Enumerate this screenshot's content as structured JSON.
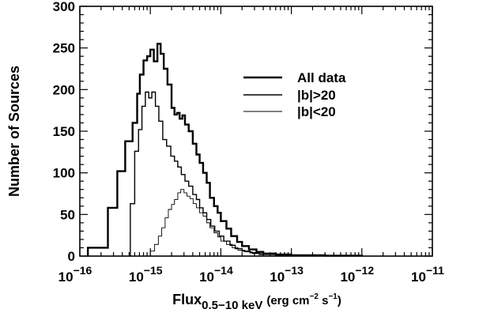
{
  "chart_data": {
    "type": "line",
    "step": true,
    "x_scale": "log",
    "xlim": [
      1e-16,
      1e-11
    ],
    "ylim": [
      0,
      300
    ],
    "xlabel": {
      "main": "Flux",
      "sub": "0.5−10 keV",
      "units_pre": "(erg cm",
      "units_exp1": "−2",
      "units_mid": " s",
      "units_exp2": "−1",
      "units_post": ")"
    },
    "ylabel": "Number of Sources",
    "x_ticks": [
      {
        "base": "10",
        "exp": "−16",
        "value": 1e-16
      },
      {
        "base": "10",
        "exp": "−15",
        "value": 1e-15
      },
      {
        "base": "10",
        "exp": "−14",
        "value": 1e-14
      },
      {
        "base": "10",
        "exp": "−13",
        "value": 1e-13
      },
      {
        "base": "10",
        "exp": "−12",
        "value": 1e-12
      },
      {
        "base": "10",
        "exp": "−11",
        "value": 1e-11
      }
    ],
    "y_ticks": [
      "0",
      "50",
      "100",
      "150",
      "200",
      "250",
      "300"
    ],
    "legend_position": "top-right",
    "series": [
      {
        "name": "All data",
        "stroke_width": 2.4,
        "points": [
          [
            1.3e-16,
            0
          ],
          [
            1.3e-16,
            10
          ],
          [
            2.5e-16,
            10
          ],
          [
            2.5e-16,
            58
          ],
          [
            3.4e-16,
            58
          ],
          [
            3.4e-16,
            102
          ],
          [
            4.4e-16,
            102
          ],
          [
            4.4e-16,
            138
          ],
          [
            5.6e-16,
            138
          ],
          [
            5.6e-16,
            160
          ],
          [
            6.5e-16,
            160
          ],
          [
            6.5e-16,
            195
          ],
          [
            7.1e-16,
            195
          ],
          [
            7.1e-16,
            218
          ],
          [
            8e-16,
            218
          ],
          [
            8e-16,
            235
          ],
          [
            9e-16,
            235
          ],
          [
            9e-16,
            240
          ],
          [
            1e-15,
            240
          ],
          [
            1e-15,
            248
          ],
          [
            1.12e-15,
            248
          ],
          [
            1.12e-15,
            234
          ],
          [
            1.26e-15,
            234
          ],
          [
            1.26e-15,
            255
          ],
          [
            1.4e-15,
            255
          ],
          [
            1.4e-15,
            243
          ],
          [
            1.55e-15,
            243
          ],
          [
            1.55e-15,
            225
          ],
          [
            1.75e-15,
            225
          ],
          [
            1.75e-15,
            206
          ],
          [
            2e-15,
            206
          ],
          [
            2e-15,
            178
          ],
          [
            2.2e-15,
            178
          ],
          [
            2.2e-15,
            170
          ],
          [
            2.4e-15,
            170
          ],
          [
            2.4e-15,
            172
          ],
          [
            2.6e-15,
            172
          ],
          [
            2.6e-15,
            165
          ],
          [
            2.85e-15,
            165
          ],
          [
            2.85e-15,
            169
          ],
          [
            3.1e-15,
            169
          ],
          [
            3.1e-15,
            158
          ],
          [
            3.5e-15,
            158
          ],
          [
            3.5e-15,
            150
          ],
          [
            4e-15,
            150
          ],
          [
            4e-15,
            135
          ],
          [
            4.5e-15,
            135
          ],
          [
            4.5e-15,
            122
          ],
          [
            5e-15,
            122
          ],
          [
            5e-15,
            112
          ],
          [
            5.6e-15,
            112
          ],
          [
            5.6e-15,
            100
          ],
          [
            6.3e-15,
            100
          ],
          [
            6.3e-15,
            88
          ],
          [
            7e-15,
            88
          ],
          [
            7e-15,
            70
          ],
          [
            8e-15,
            70
          ],
          [
            8e-15,
            60
          ],
          [
            9e-15,
            60
          ],
          [
            9e-15,
            52
          ],
          [
            1e-14,
            52
          ],
          [
            1e-14,
            42
          ],
          [
            1.2e-14,
            42
          ],
          [
            1.2e-14,
            33
          ],
          [
            1.4e-14,
            33
          ],
          [
            1.4e-14,
            24
          ],
          [
            1.7e-14,
            24
          ],
          [
            1.7e-14,
            17
          ],
          [
            2e-14,
            17
          ],
          [
            2e-14,
            12
          ],
          [
            2.5e-14,
            12
          ],
          [
            2.5e-14,
            8
          ],
          [
            3.2e-14,
            8
          ],
          [
            3.2e-14,
            5
          ],
          [
            4e-14,
            5
          ],
          [
            4e-14,
            3
          ],
          [
            6e-14,
            3
          ],
          [
            6e-14,
            2
          ],
          [
            1e-13,
            2
          ],
          [
            1e-13,
            1
          ],
          [
            3e-13,
            1
          ],
          [
            3e-13,
            0.5
          ],
          [
            1e-12,
            0.5
          ],
          [
            1e-12,
            0
          ]
        ]
      },
      {
        "name": "|b|>20",
        "stroke_width": 1.4,
        "points": [
          [
            5.2e-16,
            0
          ],
          [
            5.2e-16,
            63
          ],
          [
            6e-16,
            63
          ],
          [
            6e-16,
            126
          ],
          [
            6.8e-16,
            126
          ],
          [
            6.8e-16,
            152
          ],
          [
            7.6e-16,
            152
          ],
          [
            7.6e-16,
            180
          ],
          [
            8.5e-16,
            180
          ],
          [
            8.5e-16,
            197
          ],
          [
            9.5e-16,
            197
          ],
          [
            9.5e-16,
            190
          ],
          [
            1.05e-15,
            190
          ],
          [
            1.05e-15,
            197
          ],
          [
            1.18e-15,
            197
          ],
          [
            1.18e-15,
            180
          ],
          [
            1.32e-15,
            180
          ],
          [
            1.32e-15,
            162
          ],
          [
            1.5e-15,
            162
          ],
          [
            1.5e-15,
            140
          ],
          [
            1.7e-15,
            140
          ],
          [
            1.7e-15,
            132
          ],
          [
            1.95e-15,
            132
          ],
          [
            1.95e-15,
            120
          ],
          [
            2.2e-15,
            120
          ],
          [
            2.2e-15,
            114
          ],
          [
            2.45e-15,
            114
          ],
          [
            2.45e-15,
            107
          ],
          [
            2.75e-15,
            107
          ],
          [
            2.75e-15,
            98
          ],
          [
            3.1e-15,
            98
          ],
          [
            3.1e-15,
            90
          ],
          [
            3.5e-15,
            90
          ],
          [
            3.5e-15,
            84
          ],
          [
            4e-15,
            84
          ],
          [
            4e-15,
            74
          ],
          [
            4.5e-15,
            74
          ],
          [
            4.5e-15,
            68
          ],
          [
            5e-15,
            68
          ],
          [
            5e-15,
            58
          ],
          [
            5.6e-15,
            58
          ],
          [
            5.6e-15,
            52
          ],
          [
            6.3e-15,
            52
          ],
          [
            6.3e-15,
            44
          ],
          [
            7.2e-15,
            44
          ],
          [
            7.2e-15,
            36
          ],
          [
            8.2e-15,
            36
          ],
          [
            8.2e-15,
            30
          ],
          [
            9.5e-15,
            30
          ],
          [
            9.5e-15,
            24
          ],
          [
            1.1e-14,
            24
          ],
          [
            1.1e-14,
            18
          ],
          [
            1.35e-14,
            18
          ],
          [
            1.35e-14,
            13
          ],
          [
            1.6e-14,
            13
          ],
          [
            1.6e-14,
            9
          ],
          [
            2e-14,
            9
          ],
          [
            2e-14,
            6
          ],
          [
            2.6e-14,
            6
          ],
          [
            2.6e-14,
            4
          ],
          [
            3.5e-14,
            4
          ],
          [
            3.5e-14,
            2
          ],
          [
            6e-14,
            2
          ],
          [
            6e-14,
            1
          ],
          [
            1.5e-13,
            1
          ],
          [
            1.5e-13,
            0
          ]
        ]
      },
      {
        "name": "|b|<20",
        "stroke_width": 0.9,
        "points": [
          [
            1e-15,
            0
          ],
          [
            1e-15,
            6
          ],
          [
            1.15e-15,
            6
          ],
          [
            1.15e-15,
            14
          ],
          [
            1.3e-15,
            14
          ],
          [
            1.3e-15,
            24
          ],
          [
            1.45e-15,
            24
          ],
          [
            1.45e-15,
            34
          ],
          [
            1.62e-15,
            34
          ],
          [
            1.62e-15,
            46
          ],
          [
            1.8e-15,
            46
          ],
          [
            1.8e-15,
            56
          ],
          [
            2e-15,
            56
          ],
          [
            2e-15,
            62
          ],
          [
            2.2e-15,
            62
          ],
          [
            2.2e-15,
            68
          ],
          [
            2.45e-15,
            68
          ],
          [
            2.45e-15,
            76
          ],
          [
            2.7e-15,
            76
          ],
          [
            2.7e-15,
            80
          ],
          [
            3e-15,
            80
          ],
          [
            3e-15,
            76
          ],
          [
            3.3e-15,
            76
          ],
          [
            3.3e-15,
            72
          ],
          [
            3.65e-15,
            72
          ],
          [
            3.65e-15,
            69
          ],
          [
            4.05e-15,
            69
          ],
          [
            4.05e-15,
            63
          ],
          [
            4.5e-15,
            63
          ],
          [
            4.5e-15,
            58
          ],
          [
            5e-15,
            58
          ],
          [
            5e-15,
            52
          ],
          [
            5.6e-15,
            52
          ],
          [
            5.6e-15,
            48
          ],
          [
            6.3e-15,
            48
          ],
          [
            6.3e-15,
            40
          ],
          [
            7e-15,
            40
          ],
          [
            7e-15,
            34
          ],
          [
            8e-15,
            34
          ],
          [
            8e-15,
            28
          ],
          [
            9e-15,
            28
          ],
          [
            9e-15,
            23
          ],
          [
            1e-14,
            23
          ],
          [
            1e-14,
            18
          ],
          [
            1.2e-14,
            18
          ],
          [
            1.2e-14,
            14
          ],
          [
            1.45e-14,
            14
          ],
          [
            1.45e-14,
            10
          ],
          [
            1.75e-14,
            10
          ],
          [
            1.75e-14,
            7
          ],
          [
            2.2e-14,
            7
          ],
          [
            2.2e-14,
            5
          ],
          [
            2.8e-14,
            5
          ],
          [
            2.8e-14,
            3
          ],
          [
            4e-14,
            3
          ],
          [
            4e-14,
            2
          ],
          [
            7e-14,
            2
          ],
          [
            7e-14,
            1
          ],
          [
            2e-13,
            1
          ],
          [
            2e-13,
            0
          ]
        ]
      }
    ]
  }
}
